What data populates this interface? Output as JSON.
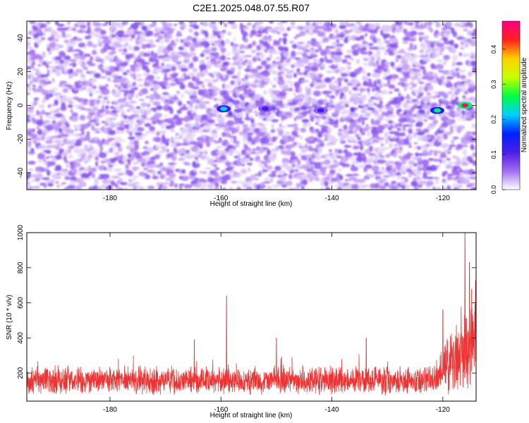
{
  "title": "C2E1.2025.048.07.55.R07",
  "chart_data": [
    {
      "type": "heatmap",
      "xlabel": "Height of straight line (km)",
      "ylabel": "Frequency (Hz)",
      "xlim": [
        -195,
        -114
      ],
      "ylim": [
        -50,
        50
      ],
      "xticks": [
        -180,
        -160,
        -140,
        -120
      ],
      "yticks": [
        -40,
        -20,
        0,
        20,
        40
      ],
      "colorbar": {
        "label": "Normalized spectral amplitude",
        "range": [
          0.0,
          0.48
        ],
        "ticks": [
          "0.0",
          "0.1",
          "0.2",
          "0.3",
          "0.4"
        ],
        "colors": [
          "#ffffff",
          "#a16cf0",
          "#4a1ee6",
          "#0020ff",
          "#00d0ff",
          "#00ff40",
          "#c8ff00",
          "#ffd000",
          "#ff2020",
          "#ff0080"
        ]
      },
      "features": [
        {
          "x": -159.5,
          "y": -2,
          "value": 0.22
        },
        {
          "x": -152,
          "y": -2,
          "value": 0.12
        },
        {
          "x": -142,
          "y": -3,
          "value": 0.11
        },
        {
          "x": -121,
          "y": -3,
          "value": 0.25
        },
        {
          "x": -116,
          "y": 0,
          "value": 0.46
        }
      ]
    },
    {
      "type": "line",
      "xlabel": "Height of straight line (km)",
      "ylabel": "SNR (10 * v/v)",
      "xlim": [
        -195,
        -114
      ],
      "ylim": [
        40,
        1000
      ],
      "xticks": [
        -180,
        -160,
        -140,
        -120
      ],
      "yticks": [
        200,
        400,
        600,
        800,
        1000
      ],
      "color": "#ee3333",
      "baseline": {
        "from": -195,
        "to": -122,
        "median": 150,
        "spread": 180
      },
      "peaks": [
        {
          "x": -159.0,
          "y": 640
        },
        {
          "x": -164.8,
          "y": 390
        },
        {
          "x": -150.0,
          "y": 400
        },
        {
          "x": -133.8,
          "y": 400
        },
        {
          "x": -120.0,
          "y": 560
        },
        {
          "x": -116.0,
          "y": 1000
        },
        {
          "x": -115.2,
          "y": 830
        }
      ]
    }
  ]
}
